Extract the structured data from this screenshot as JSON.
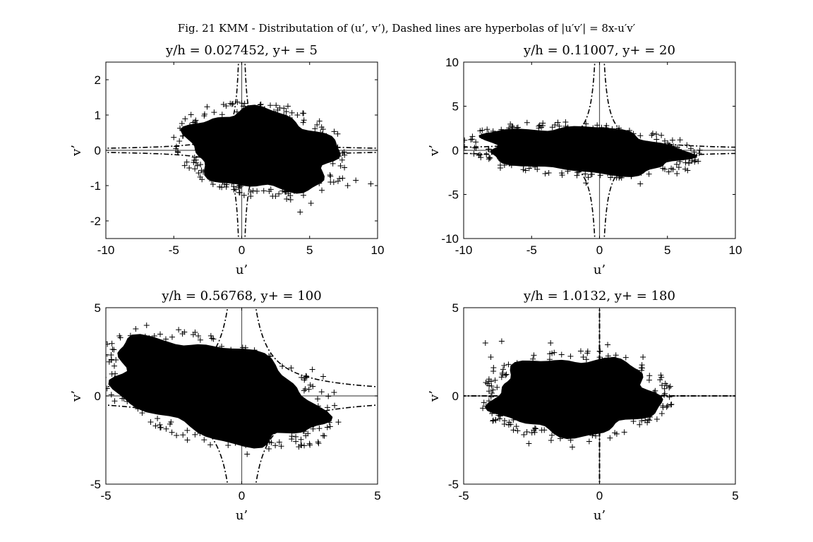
{
  "figure_title": "Fig. 21 KMM - Distributation of (u’, v’), Dashed lines are hyperbolas of |u′v′| = 8x-u′v′",
  "chart_data": [
    {
      "type": "scatter",
      "title": "y/h = 0.027452, y+ = 5",
      "xlabel": "u’",
      "ylabel": "v’",
      "xlim": [
        -10,
        10
      ],
      "ylim": [
        -2.5,
        2.5
      ],
      "xticks": [
        -10,
        -5,
        0,
        5,
        10
      ],
      "yticks": [
        -2,
        -1,
        0,
        1,
        2
      ],
      "marker": "+",
      "hyperbola_constant": 0.6,
      "cloud": {
        "u_range": [
          -3.8,
          8.5
        ],
        "v_range": [
          -1.8,
          1.3
        ],
        "center": [
          1.5,
          0.0
        ],
        "tilt": -0.18
      },
      "outliers": [
        [
          2.8,
          1.2
        ],
        [
          3.4,
          1.25
        ],
        [
          4.1,
          1.0
        ],
        [
          5.8,
          0.5
        ],
        [
          6.5,
          -0.7
        ],
        [
          7.2,
          -0.8
        ],
        [
          7.8,
          -1.0
        ],
        [
          8.4,
          -0.85
        ],
        [
          9.5,
          -0.95
        ],
        [
          4.3,
          -1.75
        ],
        [
          5.1,
          -1.5
        ],
        [
          3.6,
          -1.4
        ]
      ]
    },
    {
      "type": "scatter",
      "title": "y/h = 0.11007, y+ = 20",
      "xlabel": "u’",
      "ylabel": "v’",
      "xlim": [
        -10,
        10
      ],
      "ylim": [
        -10,
        10
      ],
      "xticks": [
        -10,
        -5,
        0,
        5,
        10
      ],
      "yticks": [
        -10,
        -5,
        0,
        5,
        10
      ],
      "marker": "+",
      "hyperbola_constant": 3.5,
      "cloud": {
        "u_range": [
          -9.5,
          7.2
        ],
        "v_range": [
          -3.9,
          3.2
        ],
        "center": [
          -1.2,
          0.0
        ],
        "tilt": -0.25
      },
      "outliers": [
        [
          -9.2,
          0.3
        ],
        [
          -8.8,
          -0.5
        ],
        [
          -6.0,
          2.6
        ],
        [
          -2.5,
          3.2
        ],
        [
          -1.0,
          3.0
        ],
        [
          6.8,
          -1.2
        ],
        [
          7.0,
          -0.6
        ],
        [
          3.0,
          -3.8
        ],
        [
          -1.0,
          -3.7
        ],
        [
          -7.3,
          -2.0
        ]
      ]
    },
    {
      "type": "scatter",
      "title": "y/h = 0.56768, y+ = 100",
      "xlabel": "u’",
      "ylabel": "v’",
      "xlim": [
        -5,
        5
      ],
      "ylim": [
        -5,
        5
      ],
      "xticks": [
        -5,
        0,
        5
      ],
      "yticks": [
        -5,
        0,
        5
      ],
      "marker": "+",
      "hyperbola_constant": 2.6,
      "cloud": {
        "u_range": [
          -5.0,
          3.6
        ],
        "v_range": [
          -3.3,
          4.0
        ],
        "center": [
          -1.0,
          0.3
        ],
        "tilt": -0.45
      },
      "outliers": [
        [
          -3.5,
          4.0
        ],
        [
          -3.9,
          3.8
        ],
        [
          -4.5,
          3.4
        ],
        [
          -3.0,
          3.5
        ],
        [
          2.6,
          1.5
        ],
        [
          3.0,
          1.1
        ],
        [
          3.4,
          0.2
        ],
        [
          -2.0,
          -2.5
        ],
        [
          -3.0,
          -1.8
        ],
        [
          -0.5,
          -2.8
        ],
        [
          0.2,
          -3.3
        ],
        [
          1.0,
          -3.0
        ],
        [
          2.2,
          -2.8
        ]
      ]
    },
    {
      "type": "scatter",
      "title": "y/h = 1.0132, y+ = 180",
      "xlabel": "u’",
      "ylabel": "v’",
      "xlim": [
        -5,
        5
      ],
      "ylim": [
        -5,
        5
      ],
      "xticks": [
        -5,
        0,
        5
      ],
      "yticks": [
        -5,
        0,
        5
      ],
      "marker": "+",
      "hyperbola_constant": 0.02,
      "cloud": {
        "u_range": [
          -4.3,
          2.5
        ],
        "v_range": [
          -2.9,
          3.1
        ],
        "center": [
          -0.9,
          0.0
        ],
        "tilt": 0.0
      },
      "outliers": [
        [
          -4.2,
          3.0
        ],
        [
          -3.6,
          3.1
        ],
        [
          -4.0,
          2.2
        ],
        [
          -3.9,
          1.6
        ],
        [
          -3.2,
          0.6
        ],
        [
          -3.6,
          -1.0
        ],
        [
          -3.5,
          -1.6
        ],
        [
          -2.6,
          -2.7
        ],
        [
          -1.0,
          -2.9
        ],
        [
          -1.8,
          3.0
        ],
        [
          0.3,
          2.9
        ],
        [
          1.6,
          2.2
        ],
        [
          2.3,
          0.6
        ]
      ]
    }
  ]
}
